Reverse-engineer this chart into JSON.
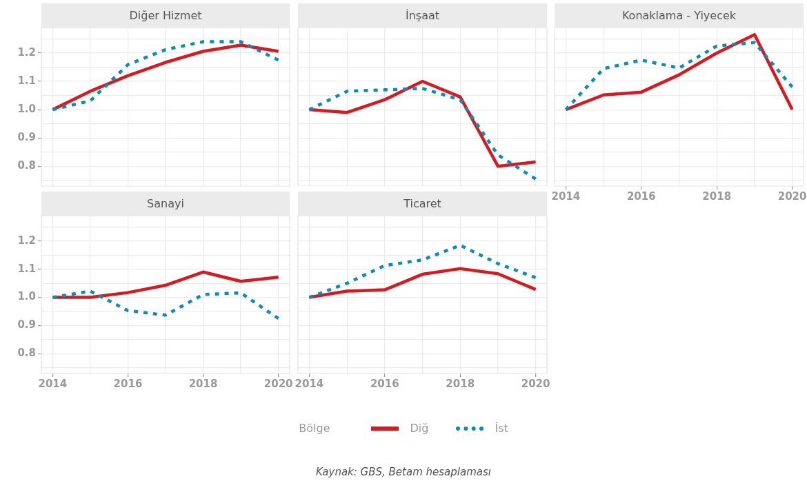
{
  "chart_data": [
    {
      "type": "line",
      "title": "Diğer Hizmet",
      "x": [
        2014,
        2015,
        2016,
        2017,
        2018,
        2019,
        2020
      ],
      "xlim": [
        2013.7,
        2020.3
      ],
      "xticks": [
        2014,
        2015,
        2016,
        2017,
        2018,
        2019,
        2020
      ],
      "ylim": [
        0.73,
        1.29
      ],
      "yticks": [
        {
          "value": 0.75,
          "label": null
        },
        0.8,
        {
          "value": 0.85,
          "label": null
        },
        0.9,
        {
          "value": 0.95,
          "label": null
        },
        {
          "value": 1,
          "label": "1.0"
        },
        {
          "value": 1.05,
          "label": null
        },
        1.1,
        {
          "value": 1.15,
          "label": null
        },
        1.2,
        {
          "value": 1.25,
          "label": null
        }
      ],
      "grid": true,
      "tick_labels": "y",
      "series": [
        {
          "color": "#d71920",
          "line_style": "solid",
          "values": [
            1.0,
            1.065,
            1.12,
            1.167,
            1.206,
            1.228,
            1.206
          ]
        },
        {
          "color": "#0a8bbf",
          "line_style": "dotted",
          "values": [
            1.0,
            1.031,
            1.159,
            1.212,
            1.24,
            1.24,
            1.175
          ]
        }
      ]
    },
    {
      "type": "line",
      "title": "İnşaat",
      "x": [
        2014,
        2015,
        2016,
        2017,
        2018,
        2019,
        2020
      ],
      "xlim": [
        2013.7,
        2020.3
      ],
      "xticks": [
        2014,
        2015,
        2016,
        2017,
        2018,
        2019,
        2020
      ],
      "ylim": [
        0.73,
        1.29
      ],
      "yticks": [
        0.75,
        0.8,
        0.85,
        0.9,
        0.95,
        1,
        1.05,
        1.1,
        1.15,
        1.2,
        1.25
      ],
      "grid": true,
      "tick_labels": false,
      "series": [
        {
          "color": "#d71920",
          "line_style": "solid",
          "values": [
            1.0,
            0.99,
            1.035,
            1.1,
            1.045,
            0.8,
            0.815
          ]
        },
        {
          "color": "#0a8bbf",
          "line_style": "dotted",
          "values": [
            1.0,
            1.065,
            1.07,
            1.075,
            1.035,
            0.84,
            0.755
          ]
        }
      ]
    },
    {
      "type": "line",
      "title": "Konaklama - Yiyecek",
      "x": [
        2014,
        2015,
        2016,
        2017,
        2018,
        2019,
        2020
      ],
      "xlim": [
        2013.7,
        2020.3
      ],
      "xticks": [
        2014,
        {
          "value": 2015,
          "label": null
        },
        2016,
        {
          "value": 2017,
          "label": null
        },
        2018,
        {
          "value": 2019,
          "label": null
        },
        2020
      ],
      "ylim": [
        0.73,
        1.29
      ],
      "yticks": [
        0.75,
        0.8,
        0.85,
        0.9,
        0.95,
        1,
        1.05,
        1.1,
        1.15,
        1.2,
        1.25
      ],
      "grid": true,
      "tick_labels": "x",
      "series": [
        {
          "color": "#d71920",
          "line_style": "solid",
          "values": [
            1.0,
            1.052,
            1.062,
            1.123,
            1.2,
            1.265,
            1.0
          ]
        },
        {
          "color": "#0a8bbf",
          "line_style": "dotted",
          "values": [
            1.0,
            1.145,
            1.175,
            1.147,
            1.225,
            1.237,
            1.08
          ]
        }
      ]
    },
    {
      "type": "line",
      "title": "Sanayi",
      "x": [
        2014,
        2015,
        2016,
        2017,
        2018,
        2019,
        2020
      ],
      "xlim": [
        2013.7,
        2020.3
      ],
      "xticks": [
        2014,
        {
          "value": 2015,
          "label": null
        },
        2016,
        {
          "value": 2017,
          "label": null
        },
        2018,
        {
          "value": 2019,
          "label": null
        },
        2020
      ],
      "ylim": [
        0.73,
        1.29
      ],
      "yticks": [
        {
          "value": 0.75,
          "label": null
        },
        0.8,
        {
          "value": 0.85,
          "label": null
        },
        0.9,
        {
          "value": 0.95,
          "label": null
        },
        {
          "value": 1,
          "label": "1.0"
        },
        {
          "value": 1.05,
          "label": null
        },
        1.1,
        {
          "value": 1.15,
          "label": null
        },
        1.2,
        {
          "value": 1.25,
          "label": null
        }
      ],
      "grid": true,
      "series": [
        {
          "color": "#d71920",
          "line_style": "solid",
          "values": [
            1.0,
            1.0,
            1.017,
            1.043,
            1.09,
            1.057,
            1.072
          ]
        },
        {
          "color": "#0a8bbf",
          "line_style": "dotted",
          "values": [
            1.0,
            1.022,
            0.953,
            0.937,
            1.01,
            1.016,
            0.925
          ]
        }
      ]
    },
    {
      "type": "line",
      "title": "Ticaret",
      "x": [
        2014,
        2015,
        2016,
        2017,
        2018,
        2019,
        2020
      ],
      "xlim": [
        2013.7,
        2020.3
      ],
      "xticks": [
        2014,
        {
          "value": 2015,
          "label": null
        },
        2016,
        {
          "value": 2017,
          "label": null
        },
        2018,
        {
          "value": 2019,
          "label": null
        },
        2020
      ],
      "ylim": [
        0.73,
        1.29
      ],
      "yticks": [
        0.75,
        0.8,
        0.85,
        0.9,
        0.95,
        1,
        1.05,
        1.1,
        1.15,
        1.2,
        1.25
      ],
      "grid": true,
      "tick_labels": "x",
      "legend": "bottom",
      "legend_title": "Bölge",
      "annotations": [
        "Kaynak: GBS, Betam hesaplaması"
      ],
      "series": [
        {
          "name": "Diğ",
          "color": "#d71920",
          "line_style": "solid",
          "values": [
            1.0,
            1.022,
            1.027,
            1.082,
            1.102,
            1.084,
            1.028
          ]
        },
        {
          "name": "İst",
          "color": "#0a8bbf",
          "line_style": "dotted",
          "values": [
            1.0,
            1.05,
            1.113,
            1.133,
            1.185,
            1.12,
            1.07
          ]
        }
      ]
    }
  ]
}
